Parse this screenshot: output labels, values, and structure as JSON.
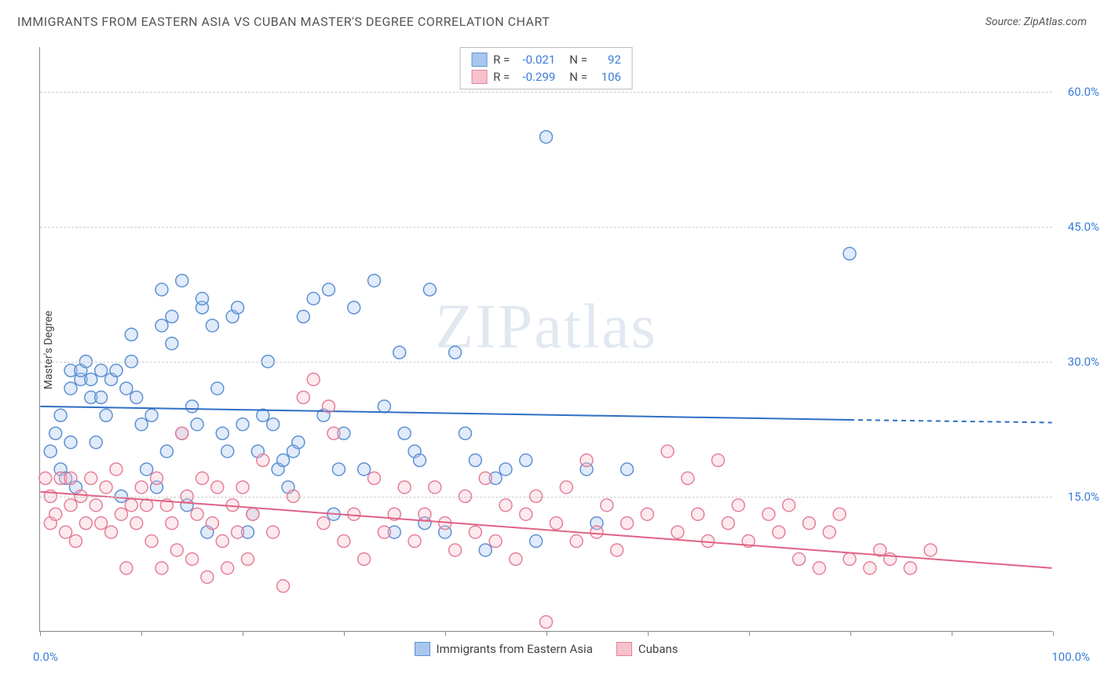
{
  "title": "IMMIGRANTS FROM EASTERN ASIA VS CUBAN MASTER'S DEGREE CORRELATION CHART",
  "source": "Source: ZipAtlas.com",
  "watermark": "ZIPatlas",
  "yaxis_title": "Master's Degree",
  "chart": {
    "type": "scatter",
    "background_color": "#ffffff",
    "grid_color": "#cccccc",
    "axis_color": "#888888",
    "tick_label_color": "#3b7dd8",
    "text_color": "#444444",
    "xlim": [
      0,
      100
    ],
    "ylim": [
      0,
      65
    ],
    "yticks": [
      15,
      30,
      45,
      60
    ],
    "ytick_labels": [
      "15.0%",
      "30.0%",
      "45.0%",
      "60.0%"
    ],
    "xticks": [
      0,
      10,
      20,
      30,
      40,
      50,
      60,
      70,
      80,
      90,
      100
    ],
    "xaxis_start_label": "0.0%",
    "xaxis_end_label": "100.0%",
    "marker_radius": 8,
    "marker_fill_opacity": 0.35,
    "marker_stroke_width": 1.5,
    "line_width": 2
  },
  "legend_top": {
    "rows": [
      {
        "R_label": "R =",
        "R": "-0.021",
        "N_label": "N =",
        "N": "92"
      },
      {
        "R_label": "R =",
        "R": "-0.299",
        "N_label": "N =",
        "N": "106"
      }
    ]
  },
  "series": [
    {
      "name": "Immigrants from Eastern Asia",
      "fill": "#a9c7ee",
      "stroke": "#5e91d4",
      "line_color": "#2e6fc4",
      "regression": {
        "x1": 0,
        "y1": 25.0,
        "x2": 80,
        "y2": 23.5,
        "dash_from_x": 80,
        "dash_to_x": 100,
        "dash_y2": 23.2
      },
      "points": [
        [
          1,
          20
        ],
        [
          1.5,
          22
        ],
        [
          2,
          18
        ],
        [
          2,
          24
        ],
        [
          2.5,
          17
        ],
        [
          3,
          21
        ],
        [
          3,
          27
        ],
        [
          3,
          29
        ],
        [
          3.5,
          16
        ],
        [
          4,
          28
        ],
        [
          4,
          29
        ],
        [
          4.5,
          30
        ],
        [
          5,
          26
        ],
        [
          5,
          28
        ],
        [
          5.5,
          21
        ],
        [
          6,
          26
        ],
        [
          6,
          29
        ],
        [
          6.5,
          24
        ],
        [
          7,
          28
        ],
        [
          7.5,
          29
        ],
        [
          8,
          15
        ],
        [
          8.5,
          27
        ],
        [
          9,
          33
        ],
        [
          9,
          30
        ],
        [
          9.5,
          26
        ],
        [
          10,
          23
        ],
        [
          10.5,
          18
        ],
        [
          11,
          24
        ],
        [
          11.5,
          16
        ],
        [
          12,
          34
        ],
        [
          12,
          38
        ],
        [
          12.5,
          20
        ],
        [
          13,
          32
        ],
        [
          13,
          35
        ],
        [
          14,
          39
        ],
        [
          14,
          22
        ],
        [
          14.5,
          14
        ],
        [
          15,
          25
        ],
        [
          15.5,
          23
        ],
        [
          16,
          36
        ],
        [
          16,
          37
        ],
        [
          16.5,
          11
        ],
        [
          17,
          34
        ],
        [
          17.5,
          27
        ],
        [
          18,
          22
        ],
        [
          18.5,
          20
        ],
        [
          19,
          35
        ],
        [
          19.5,
          36
        ],
        [
          20,
          23
        ],
        [
          20.5,
          11
        ],
        [
          21,
          13
        ],
        [
          21.5,
          20
        ],
        [
          22,
          24
        ],
        [
          22.5,
          30
        ],
        [
          23,
          23
        ],
        [
          23.5,
          18
        ],
        [
          24,
          19
        ],
        [
          24.5,
          16
        ],
        [
          25,
          20
        ],
        [
          25.5,
          21
        ],
        [
          26,
          35
        ],
        [
          27,
          37
        ],
        [
          28,
          24
        ],
        [
          28.5,
          38
        ],
        [
          29,
          13
        ],
        [
          29.5,
          18
        ],
        [
          30,
          22
        ],
        [
          31,
          36
        ],
        [
          32,
          18
        ],
        [
          33,
          39
        ],
        [
          34,
          25
        ],
        [
          35,
          11
        ],
        [
          35.5,
          31
        ],
        [
          36,
          22
        ],
        [
          37,
          20
        ],
        [
          37.5,
          19
        ],
        [
          38,
          12
        ],
        [
          38.5,
          38
        ],
        [
          40,
          11
        ],
        [
          41,
          31
        ],
        [
          42,
          22
        ],
        [
          43,
          19
        ],
        [
          44,
          9
        ],
        [
          45,
          17
        ],
        [
          46,
          18
        ],
        [
          48,
          19
        ],
        [
          49,
          10
        ],
        [
          50,
          55
        ],
        [
          54,
          18
        ],
        [
          55,
          12
        ],
        [
          58,
          18
        ],
        [
          80,
          42
        ]
      ]
    },
    {
      "name": "Cubans",
      "fill": "#f5c2ce",
      "stroke": "#e57f9a",
      "line_color": "#e06285",
      "regression": {
        "x1": 0,
        "y1": 15.5,
        "x2": 100,
        "y2": 7.0
      },
      "points": [
        [
          0.5,
          17
        ],
        [
          1,
          12
        ],
        [
          1,
          15
        ],
        [
          1.5,
          13
        ],
        [
          2,
          17
        ],
        [
          2.5,
          11
        ],
        [
          3,
          14
        ],
        [
          3,
          17
        ],
        [
          3.5,
          10
        ],
        [
          4,
          15
        ],
        [
          4.5,
          12
        ],
        [
          5,
          17
        ],
        [
          5.5,
          14
        ],
        [
          6,
          12
        ],
        [
          6.5,
          16
        ],
        [
          7,
          11
        ],
        [
          7.5,
          18
        ],
        [
          8,
          13
        ],
        [
          8.5,
          7
        ],
        [
          9,
          14
        ],
        [
          9.5,
          12
        ],
        [
          10,
          16
        ],
        [
          10.5,
          14
        ],
        [
          11,
          10
        ],
        [
          11.5,
          17
        ],
        [
          12,
          7
        ],
        [
          12.5,
          14
        ],
        [
          13,
          12
        ],
        [
          13.5,
          9
        ],
        [
          14,
          22
        ],
        [
          14.5,
          15
        ],
        [
          15,
          8
        ],
        [
          15.5,
          13
        ],
        [
          16,
          17
        ],
        [
          16.5,
          6
        ],
        [
          17,
          12
        ],
        [
          17.5,
          16
        ],
        [
          18,
          10
        ],
        [
          18.5,
          7
        ],
        [
          19,
          14
        ],
        [
          19.5,
          11
        ],
        [
          20,
          16
        ],
        [
          20.5,
          8
        ],
        [
          21,
          13
        ],
        [
          22,
          19
        ],
        [
          23,
          11
        ],
        [
          24,
          5
        ],
        [
          25,
          15
        ],
        [
          26,
          26
        ],
        [
          27,
          28
        ],
        [
          28,
          12
        ],
        [
          28.5,
          25
        ],
        [
          29,
          22
        ],
        [
          30,
          10
        ],
        [
          31,
          13
        ],
        [
          32,
          8
        ],
        [
          33,
          17
        ],
        [
          34,
          11
        ],
        [
          35,
          13
        ],
        [
          36,
          16
        ],
        [
          37,
          10
        ],
        [
          38,
          13
        ],
        [
          39,
          16
        ],
        [
          40,
          12
        ],
        [
          41,
          9
        ],
        [
          42,
          15
        ],
        [
          43,
          11
        ],
        [
          44,
          17
        ],
        [
          45,
          10
        ],
        [
          46,
          14
        ],
        [
          47,
          8
        ],
        [
          48,
          13
        ],
        [
          49,
          15
        ],
        [
          50,
          1
        ],
        [
          51,
          12
        ],
        [
          52,
          16
        ],
        [
          53,
          10
        ],
        [
          54,
          19
        ],
        [
          55,
          11
        ],
        [
          56,
          14
        ],
        [
          57,
          9
        ],
        [
          58,
          12
        ],
        [
          60,
          13
        ],
        [
          62,
          20
        ],
        [
          63,
          11
        ],
        [
          64,
          17
        ],
        [
          65,
          13
        ],
        [
          66,
          10
        ],
        [
          67,
          19
        ],
        [
          68,
          12
        ],
        [
          69,
          14
        ],
        [
          70,
          10
        ],
        [
          72,
          13
        ],
        [
          73,
          11
        ],
        [
          74,
          14
        ],
        [
          75,
          8
        ],
        [
          76,
          12
        ],
        [
          77,
          7
        ],
        [
          78,
          11
        ],
        [
          79,
          13
        ],
        [
          80,
          8
        ],
        [
          82,
          7
        ],
        [
          83,
          9
        ],
        [
          84,
          8
        ],
        [
          86,
          7
        ],
        [
          88,
          9
        ]
      ]
    }
  ],
  "bottom_legend": [
    {
      "label": "Immigrants from Eastern Asia"
    },
    {
      "label": "Cubans"
    }
  ]
}
